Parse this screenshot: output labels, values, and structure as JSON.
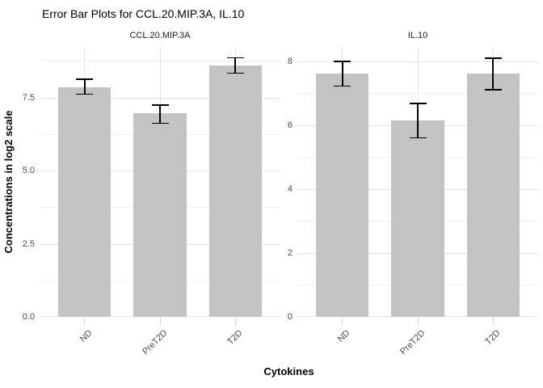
{
  "chart_data": {
    "type": "bar",
    "title": "Error Bar Plots for CCL.20.MIP.3A, IL.10",
    "xlabel": "Cytokines",
    "ylabel": "Concentrations in log2 scale",
    "categories": [
      "ND",
      "PreT2D",
      "T2D"
    ],
    "legend": "none",
    "grid": true,
    "bar_color": "#c3c3c3",
    "error_bar_color": "#000000",
    "facets": [
      {
        "label": "CCL.20.MIP.3A",
        "ylim": [
          0,
          9.24
        ],
        "y_ticks": [
          {
            "value": 0,
            "label": "0.0"
          },
          {
            "value": 2.5,
            "label": "2.5"
          },
          {
            "value": 5,
            "label": "5.0"
          },
          {
            "value": 7.5,
            "label": "7.5"
          }
        ],
        "y_minor": [
          1.25,
          3.75,
          6.25,
          8.75
        ],
        "bars": [
          {
            "category": "ND",
            "mean": 7.87,
            "lower": 7.62,
            "upper": 8.14
          },
          {
            "category": "PreT2D",
            "mean": 6.96,
            "lower": 6.62,
            "upper": 7.25
          },
          {
            "category": "T2D",
            "mean": 8.61,
            "lower": 8.34,
            "upper": 8.87
          }
        ]
      },
      {
        "label": "IL.10",
        "ylim": [
          0,
          8.45
        ],
        "y_ticks": [
          {
            "value": 0,
            "label": "0"
          },
          {
            "value": 2,
            "label": "2"
          },
          {
            "value": 4,
            "label": "4"
          },
          {
            "value": 6,
            "label": "6"
          },
          {
            "value": 8,
            "label": "8"
          }
        ],
        "y_minor": [
          1,
          3,
          5,
          7
        ],
        "bars": [
          {
            "category": "ND",
            "mean": 7.61,
            "lower": 7.22,
            "upper": 8.0
          },
          {
            "category": "PreT2D",
            "mean": 6.15,
            "lower": 5.61,
            "upper": 6.68
          },
          {
            "category": "T2D",
            "mean": 7.61,
            "lower": 7.11,
            "upper": 8.1
          }
        ]
      }
    ]
  },
  "colors": {
    "grid_major": "#e4e4e4",
    "grid_minor": "#f2f2f2",
    "axis_text": "#4d4d4d",
    "strip_text": "#1a1a1a",
    "tick_mark": "#d6d6d6",
    "title_text": "#000000"
  }
}
